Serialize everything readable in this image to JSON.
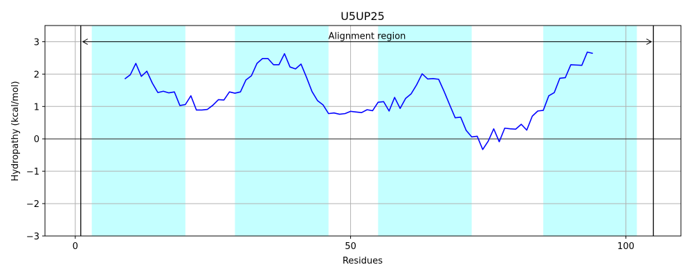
{
  "chart_data": {
    "type": "line",
    "title": "U5UP25",
    "xlabel": "Residues",
    "ylabel": "Hydropathy (kcal/mol)",
    "xlim": [
      -5.5,
      110
    ],
    "ylim": [
      -3,
      3.5
    ],
    "xticks": [
      0,
      50,
      100
    ],
    "yticks": [
      -3,
      -2,
      -1,
      0,
      1,
      2,
      3
    ],
    "xtick_labels": [
      "0",
      "50",
      "100"
    ],
    "ytick_labels": [
      "−3",
      "−2",
      "−1",
      "0",
      "1",
      "2",
      "3"
    ],
    "grid": true,
    "line_color": "#0000ff",
    "band_color": "#c4ffff",
    "highlight_bands": [
      [
        3,
        20
      ],
      [
        29,
        46
      ],
      [
        55,
        72
      ],
      [
        85,
        102
      ]
    ],
    "alignment_region": {
      "label": "Alignment region",
      "start": 1,
      "end": 105,
      "y": 3
    },
    "series": [
      {
        "x": [
          9,
          10,
          11,
          12,
          13,
          14,
          15,
          16,
          17,
          18,
          19,
          20,
          21,
          22,
          23,
          24,
          25,
          26,
          27,
          28,
          29,
          30,
          31,
          32,
          33,
          34,
          35,
          36,
          37,
          38,
          39,
          40,
          41,
          42,
          43,
          44,
          45,
          46,
          47,
          48,
          49,
          50,
          51,
          52,
          53,
          54,
          55,
          56,
          57,
          58,
          59,
          60,
          61,
          62,
          63,
          64,
          65,
          66,
          67,
          68,
          69,
          70,
          71,
          72,
          73,
          74,
          75,
          76,
          77,
          78,
          79,
          80,
          81,
          82,
          83,
          84,
          85,
          86,
          87,
          88,
          89,
          90,
          91,
          92,
          93,
          94
        ],
        "y": [
          1.85,
          1.98,
          2.33,
          1.93,
          2.09,
          1.72,
          1.43,
          1.47,
          1.42,
          1.45,
          1.03,
          1.06,
          1.33,
          0.89,
          0.89,
          0.91,
          1.04,
          1.21,
          1.2,
          1.45,
          1.41,
          1.45,
          1.82,
          1.95,
          2.33,
          2.48,
          2.48,
          2.29,
          2.29,
          2.63,
          2.22,
          2.16,
          2.31,
          1.9,
          1.46,
          1.18,
          1.05,
          0.78,
          0.8,
          0.76,
          0.78,
          0.85,
          0.83,
          0.81,
          0.9,
          0.87,
          1.13,
          1.15,
          0.86,
          1.28,
          0.94,
          1.25,
          1.39,
          1.67,
          2.01,
          1.85,
          1.86,
          1.84,
          1.46,
          1.05,
          0.65,
          0.67,
          0.26,
          0.06,
          0.08,
          -0.33,
          -0.07,
          0.31,
          -0.09,
          0.33,
          0.31,
          0.3,
          0.45,
          0.27,
          0.7,
          0.86,
          0.88,
          1.33,
          1.43,
          1.87,
          1.89,
          2.29,
          2.28,
          2.27,
          2.68,
          2.64
        ]
      }
    ]
  }
}
